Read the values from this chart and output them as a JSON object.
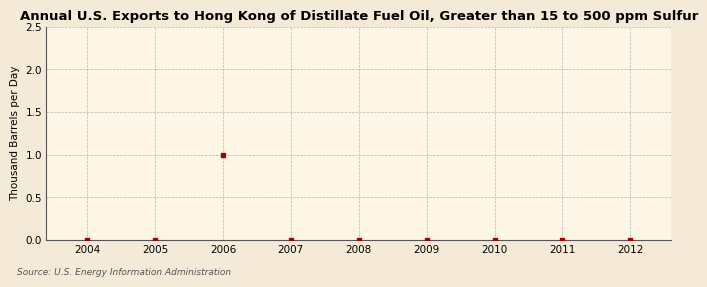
{
  "title": "Annual U.S. Exports to Hong Kong of Distillate Fuel Oil, Greater than 15 to 500 ppm Sulfur",
  "ylabel": "Thousand Barrels per Day",
  "source": "Source: U.S. Energy Information Administration",
  "background_color": "#f5ead8",
  "plot_background_color": "#fdf5e6",
  "x_data": [
    2004,
    2005,
    2006,
    2007,
    2008,
    2009,
    2010,
    2011,
    2012
  ],
  "y_data": [
    0.0,
    0.005,
    1.0,
    0.005,
    0.0,
    0.005,
    0.0,
    0.005,
    0.005
  ],
  "xlim": [
    2003.4,
    2012.6
  ],
  "ylim": [
    0.0,
    2.5
  ],
  "yticks": [
    0.0,
    0.5,
    1.0,
    1.5,
    2.0,
    2.5
  ],
  "xticks": [
    2004,
    2005,
    2006,
    2007,
    2008,
    2009,
    2010,
    2011,
    2012
  ],
  "marker_color": "#aa0000",
  "marker_size": 3,
  "grid_color": "#999999",
  "title_fontsize": 9.5,
  "label_fontsize": 7.5,
  "tick_fontsize": 7.5,
  "source_fontsize": 6.5
}
